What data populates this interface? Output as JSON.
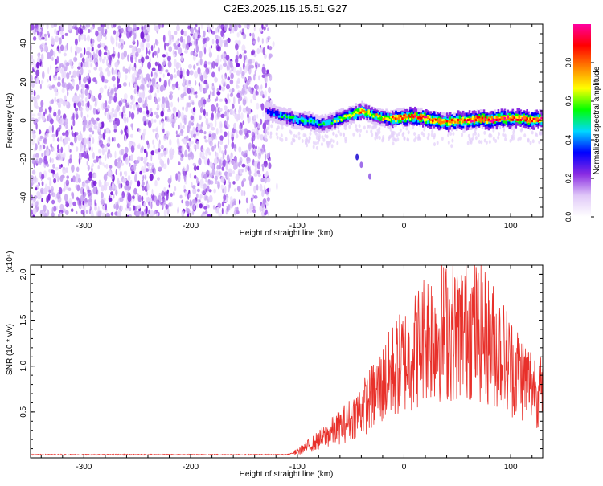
{
  "title": "C2E3.2025.115.15.51.G27",
  "chart_data": [
    {
      "type": "heatmap",
      "xlabel": "Height of straight line (km)",
      "ylabel": "Frequency (Hz)",
      "xlim": [
        -350,
        130
      ],
      "ylim": [
        -50,
        50
      ],
      "x_ticks": [
        -300,
        -200,
        -100,
        0,
        100
      ],
      "x_tick_labels": [
        "-300",
        "-200",
        "-100",
        "0",
        "100"
      ],
      "y_ticks": [
        -40,
        -20,
        0,
        20,
        40
      ],
      "y_tick_labels": [
        "-40",
        "-20",
        "0",
        "20",
        "40"
      ],
      "colorbar": {
        "label": "Normalized spectral amplitude",
        "range": [
          0,
          1
        ],
        "ticks": [
          0.0,
          0.2,
          0.4,
          0.6,
          0.8
        ],
        "tick_labels": [
          "0.0",
          "0.2",
          "0.4",
          "0.6",
          "0.8"
        ],
        "colors": [
          "#ffffff",
          "#e0c8f8",
          "#8a2be2",
          "#0000ff",
          "#00d8ff",
          "#00ff00",
          "#ffff00",
          "#ff8000",
          "#ff0000",
          "#ff00a0"
        ]
      },
      "noise_region": {
        "x_start": -350,
        "x_end": -125,
        "amplitude": 0.2
      },
      "signal_trace": {
        "x": [
          -130,
          -120,
          -110,
          -100,
          -90,
          -80,
          -70,
          -60,
          -50,
          -40,
          -30,
          -20,
          -10,
          0,
          10,
          20,
          30,
          40,
          50,
          60,
          70,
          80,
          90,
          100,
          110,
          120,
          130
        ],
        "frequency": [
          5,
          3,
          2,
          0,
          0,
          -2,
          -1,
          1,
          3,
          5,
          3,
          1,
          1,
          2,
          2,
          1,
          0,
          -1,
          0,
          0,
          1,
          0,
          1,
          1,
          1,
          0,
          1
        ],
        "amplitude": [
          0.3,
          0.4,
          0.5,
          0.5,
          0.55,
          0.45,
          0.5,
          0.6,
          0.7,
          0.75,
          0.65,
          0.7,
          0.8,
          0.85,
          0.85,
          0.9,
          0.85,
          0.8,
          0.85,
          0.9,
          0.9,
          0.95,
          0.9,
          0.85,
          0.9,
          0.9,
          0.85
        ]
      },
      "stray_points": {
        "x": [
          -44,
          -40,
          -32
        ],
        "frequency": [
          -19,
          -23,
          -29
        ]
      }
    },
    {
      "type": "line",
      "xlabel": "Height of straight line (km)",
      "ylabel": "SNR (10 * v/v)",
      "y_multiplier_label": "(x10⁴)",
      "xlim": [
        -350,
        130
      ],
      "ylim": [
        0,
        2.1
      ],
      "x_ticks": [
        -300,
        -200,
        -100,
        0,
        100
      ],
      "x_tick_labels": [
        "-300",
        "-200",
        "-100",
        "0",
        "100"
      ],
      "y_ticks": [
        0.5,
        1.0,
        1.5,
        2.0
      ],
      "y_tick_labels": [
        "0.5",
        "1.0",
        "1.5",
        "2.0"
      ],
      "series": [
        {
          "color": "#e8302a",
          "x": [
            -350,
            -300,
            -250,
            -200,
            -150,
            -110,
            -100,
            -90,
            -80,
            -70,
            -60,
            -50,
            -40,
            -30,
            -20,
            -10,
            0,
            10,
            20,
            30,
            40,
            50,
            60,
            70,
            80,
            90,
            100,
            110,
            120,
            130
          ],
          "y": [
            0.03,
            0.03,
            0.03,
            0.03,
            0.03,
            0.03,
            0.06,
            0.12,
            0.18,
            0.25,
            0.32,
            0.4,
            0.5,
            0.62,
            0.75,
            0.9,
            1.0,
            1.1,
            1.25,
            1.3,
            1.3,
            1.3,
            1.35,
            1.3,
            1.2,
            1.1,
            0.95,
            0.85,
            0.75,
            0.65
          ]
        }
      ]
    }
  ]
}
